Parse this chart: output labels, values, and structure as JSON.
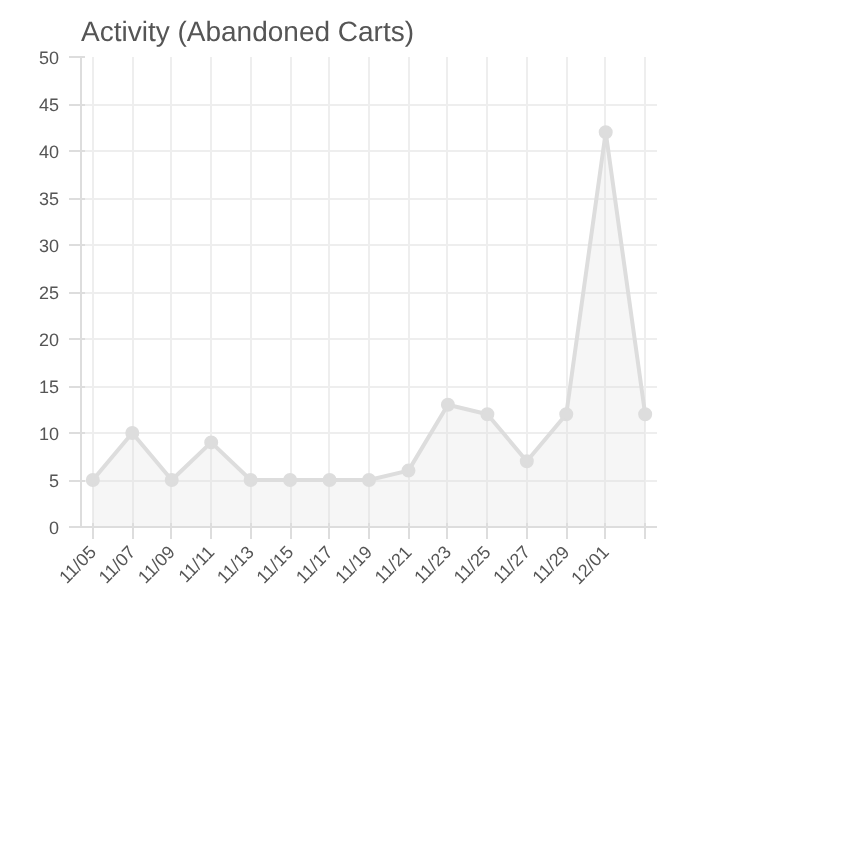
{
  "chart_data": {
    "type": "area",
    "title": "Activity (Abandoned Carts)",
    "categories": [
      "11/05",
      "11/07",
      "11/09",
      "11/11",
      "11/13",
      "11/15",
      "11/17",
      "11/19",
      "11/21",
      "11/23",
      "11/25",
      "11/27",
      "11/29",
      "12/01",
      null
    ],
    "series": [
      {
        "color": "#dddddd",
        "values": [
          5,
          10,
          5,
          9,
          5,
          5,
          5,
          5,
          6,
          13,
          12,
          7,
          12,
          42,
          12
        ]
      }
    ],
    "ylim": [
      0,
      50
    ],
    "yticks": [
      0,
      5,
      10,
      15,
      20,
      25,
      30,
      35,
      40,
      45,
      50
    ],
    "grid": true,
    "marker": "circle",
    "line_style": "solid"
  }
}
